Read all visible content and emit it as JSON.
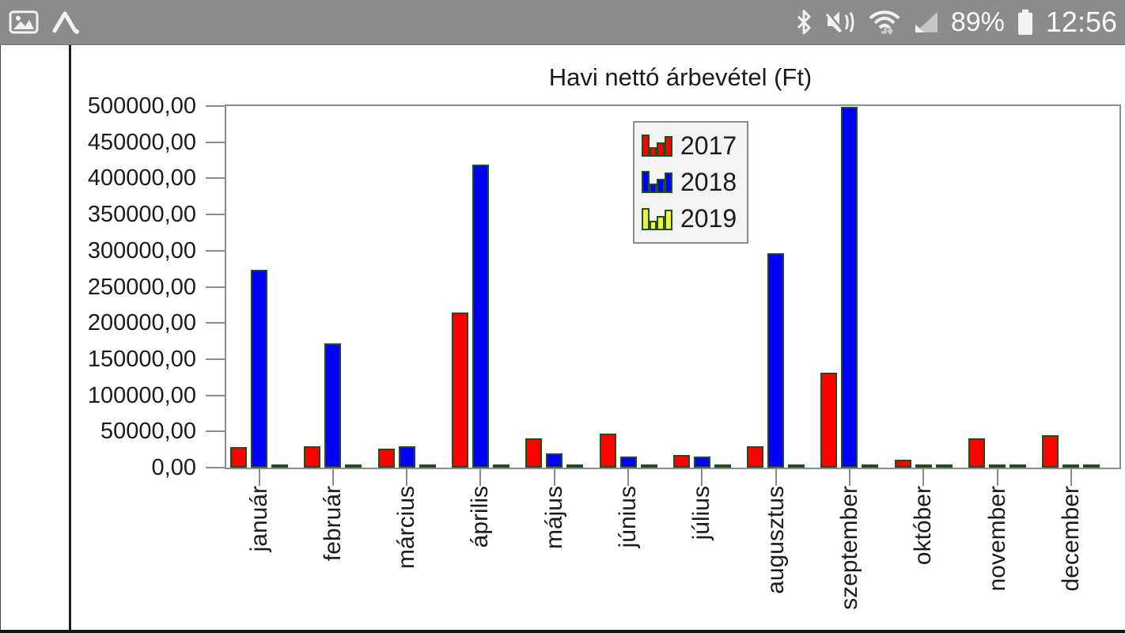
{
  "status_bar": {
    "time": "12:56",
    "battery_percent": "89%",
    "left_icons": [
      "gallery",
      "letter-a-notification"
    ],
    "right_icons": [
      "bluetooth",
      "mute-vibrate",
      "wifi-updown",
      "cell-signal",
      "battery"
    ]
  },
  "chart_data": {
    "type": "bar",
    "title": "Havi nettó árbevétel (Ft)",
    "categories": [
      "január",
      "február",
      "március",
      "április",
      "május",
      "június",
      "július",
      "augusztus",
      "szeptember",
      "október",
      "november",
      "december"
    ],
    "series": [
      {
        "name": "2017",
        "color": "#fe0000",
        "values": [
          28000,
          30000,
          26000,
          214000,
          40000,
          47000,
          18000,
          30000,
          131000,
          11000,
          40000,
          45000
        ]
      },
      {
        "name": "2018",
        "color": "#0000fe",
        "values": [
          274000,
          172000,
          30000,
          419000,
          20000,
          15000,
          15000,
          297000,
          499000,
          2500,
          2500,
          2500
        ]
      },
      {
        "name": "2019",
        "color": "#eef23c",
        "values": [
          2500,
          2500,
          2500,
          2500,
          2500,
          2500,
          2500,
          2500,
          2500,
          2500,
          2500,
          2500
        ]
      }
    ],
    "bar_outline_color": "#1e4f1e",
    "ylim": [
      0,
      500000
    ],
    "y_tick_step": 50000,
    "y_tick_labels": [
      "500000,00",
      "450000,00",
      "400000,00",
      "350000,00",
      "300000,00",
      "250000,00",
      "200000,00",
      "150000,00",
      "100000,00",
      "50000,00",
      "0,00"
    ],
    "x_label_rotation": -90,
    "grid": false,
    "legend_position": "inside-top-center",
    "axis_color": "#8c8c8c"
  }
}
